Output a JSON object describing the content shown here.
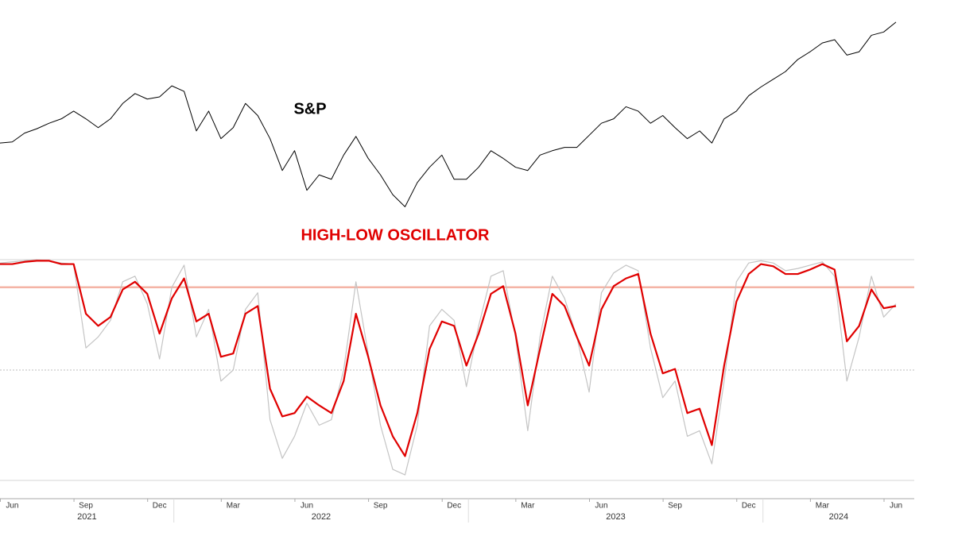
{
  "chart_data": [
    {
      "type": "line",
      "title": "S&P",
      "color": "#000000",
      "ylim": [
        3500,
        5400
      ],
      "values": [
        4200,
        4210,
        4290,
        4330,
        4380,
        4420,
        4490,
        4420,
        4340,
        4420,
        4560,
        4650,
        4600,
        4620,
        4720,
        4670,
        4310,
        4490,
        4240,
        4340,
        4560,
        4450,
        4240,
        3950,
        4130,
        3770,
        3910,
        3870,
        4090,
        4260,
        4060,
        3910,
        3730,
        3620,
        3840,
        3980,
        4090,
        3870,
        3870,
        3980,
        4130,
        4060,
        3980,
        3950,
        4090,
        4130,
        4160,
        4160,
        4270,
        4380,
        4420,
        4530,
        4490,
        4380,
        4450,
        4340,
        4240,
        4310,
        4200,
        4420,
        4490,
        4630,
        4710,
        4780,
        4850,
        4960,
        5030,
        5110,
        5140,
        5000,
        5030,
        5180,
        5210,
        5300
      ]
    },
    {
      "type": "line",
      "title": "HIGH-LOW OSCILLATOR",
      "ylim": [
        -100,
        100
      ],
      "reference_lines": [
        {
          "value": 100,
          "color": "#d4d4d4",
          "style": "solid"
        },
        {
          "value": 75,
          "color": "#f4b4a6",
          "style": "solid"
        },
        {
          "value": 0,
          "color": "#bdbdbd",
          "style": "dotted"
        },
        {
          "value": -100,
          "color": "#d4d4d4",
          "style": "solid"
        }
      ],
      "series": [
        {
          "color": "#c4c4c4",
          "values": [
            97,
            98,
            99,
            100,
            99,
            97,
            96,
            20,
            30,
            45,
            80,
            85,
            60,
            10,
            75,
            95,
            30,
            55,
            -10,
            0,
            55,
            70,
            -45,
            -80,
            -60,
            -30,
            -50,
            -45,
            0,
            80,
            15,
            -50,
            -90,
            -95,
            -50,
            40,
            55,
            45,
            -15,
            40,
            85,
            90,
            30,
            -55,
            30,
            85,
            65,
            30,
            -20,
            70,
            88,
            95,
            90,
            20,
            -25,
            -10,
            -60,
            -55,
            -85,
            -10,
            80,
            97,
            99,
            97,
            90,
            92,
            95,
            98,
            85,
            -10,
            30,
            85,
            48,
            60
          ]
        },
        {
          "color": "#e00000",
          "values": [
            96,
            96,
            98,
            99,
            99,
            96,
            96,
            51,
            40,
            48,
            73,
            80,
            69,
            33,
            65,
            83,
            44,
            51,
            12,
            15,
            51,
            58,
            -17,
            -42,
            -39,
            -24,
            -32,
            -39,
            -10,
            51,
            12,
            -32,
            -60,
            -78,
            -39,
            19,
            44,
            40,
            4,
            33,
            69,
            76,
            33,
            -32,
            19,
            69,
            58,
            30,
            4,
            55,
            76,
            83,
            87,
            33,
            -3,
            1,
            -39,
            -35,
            -68,
            4,
            62,
            87,
            96,
            94,
            87,
            87,
            91,
            96,
            91,
            26,
            40,
            73,
            56,
            58
          ]
        }
      ]
    }
  ],
  "x_axis": {
    "categories": [
      null,
      "Jun",
      null,
      null,
      null,
      null,
      null,
      "Sep",
      null,
      null,
      null,
      null,
      null,
      "Dec",
      null,
      null,
      null,
      null,
      null,
      "Mar",
      null,
      null,
      null,
      null,
      null,
      "Jun",
      null,
      null,
      null,
      null,
      null,
      "Sep",
      null,
      null,
      null,
      null,
      null,
      "Dec",
      null,
      null,
      null,
      null,
      null,
      "Mar",
      null,
      null,
      null,
      null,
      null,
      "Jun",
      null,
      null,
      null,
      null,
      null,
      "Sep",
      null,
      null,
      null,
      null,
      null,
      "Dec",
      null,
      null,
      null,
      null,
      null,
      "Mar",
      null,
      null,
      null,
      null,
      null,
      "Jun"
    ],
    "years": [
      "2021",
      "2022",
      "2023",
      "2024"
    ]
  }
}
